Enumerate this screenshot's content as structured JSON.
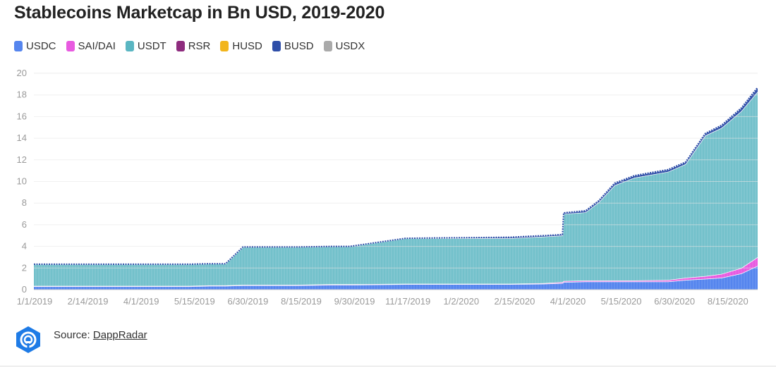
{
  "title": "Stablecoins Marketcap in Bn USD, 2019-2020",
  "source": {
    "prefix": "Source: ",
    "link_text": "DappRadar"
  },
  "logo_icon": "dappradar-logo-icon",
  "chart_data": {
    "type": "area",
    "title": "Stablecoins Marketcap in Bn USD, 2019-2020",
    "stacked": true,
    "ylim": [
      0,
      20
    ],
    "yticks": [
      "0",
      "2",
      "4",
      "6",
      "8",
      "10",
      "12",
      "14",
      "16",
      "18",
      "20"
    ],
    "xticks": [
      "1/1/2019",
      "2/14/2019",
      "4/1/2019",
      "5/15/2019",
      "6/30/2019",
      "8/15/2019",
      "9/30/2019",
      "11/17/2019",
      "1/2/2020",
      "2/15/2020",
      "4/1/2020",
      "5/15/2020",
      "6/30/2020",
      "8/15/2020"
    ],
    "grid": true,
    "legend_position": "top-left",
    "x": [
      "1/1/2019",
      "2/14/2019",
      "4/1/2019",
      "5/15/2019",
      "6/1/2019",
      "6/15/2019",
      "6/30/2019",
      "8/15/2019",
      "9/15/2019",
      "9/30/2019",
      "11/17/2019",
      "1/2/2020",
      "2/15/2020",
      "3/15/2020",
      "3/31/2020",
      "4/1/2020",
      "4/20/2020",
      "5/1/2020",
      "5/15/2020",
      "6/1/2020",
      "6/30/2020",
      "7/15/2020",
      "8/1/2020",
      "8/15/2020",
      "9/1/2020",
      "9/15/2020"
    ],
    "series": [
      {
        "name": "USDC",
        "color": "#5585ee",
        "values": [
          0.3,
          0.3,
          0.3,
          0.3,
          0.35,
          0.35,
          0.4,
          0.4,
          0.45,
          0.45,
          0.5,
          0.5,
          0.5,
          0.55,
          0.6,
          0.7,
          0.75,
          0.75,
          0.75,
          0.75,
          0.75,
          0.9,
          1.0,
          1.1,
          1.5,
          2.2
        ]
      },
      {
        "name": "SAI/DAI",
        "color": "#e85ae0",
        "values": [
          0.05,
          0.05,
          0.05,
          0.05,
          0.05,
          0.05,
          0.05,
          0.05,
          0.05,
          0.05,
          0.05,
          0.05,
          0.05,
          0.05,
          0.1,
          0.1,
          0.1,
          0.1,
          0.1,
          0.1,
          0.15,
          0.2,
          0.25,
          0.35,
          0.5,
          0.8
        ]
      },
      {
        "name": "USDT",
        "color": "#5ab6c2",
        "values": [
          2.0,
          2.0,
          2.0,
          2.0,
          2.0,
          2.0,
          3.5,
          3.5,
          3.5,
          3.5,
          4.2,
          4.2,
          4.2,
          4.3,
          4.3,
          6.2,
          6.3,
          7.2,
          8.8,
          9.5,
          10.0,
          10.5,
          13.0,
          13.5,
          14.5,
          15.3
        ]
      },
      {
        "name": "RSR",
        "color": "#8e2c7e",
        "values": [
          0,
          0,
          0,
          0,
          0,
          0,
          0,
          0,
          0,
          0,
          0,
          0,
          0,
          0,
          0,
          0,
          0,
          0,
          0,
          0,
          0,
          0,
          0,
          0,
          0,
          0
        ]
      },
      {
        "name": "HUSD",
        "color": "#f2b51c",
        "values": [
          0,
          0,
          0,
          0,
          0,
          0,
          0,
          0,
          0,
          0,
          0,
          0,
          0,
          0,
          0,
          0,
          0,
          0,
          0,
          0,
          0,
          0,
          0,
          0,
          0,
          0
        ]
      },
      {
        "name": "BUSD",
        "color": "#2e4ea8",
        "values": [
          0,
          0,
          0,
          0,
          0,
          0,
          0,
          0,
          0,
          0,
          0,
          0.05,
          0.1,
          0.1,
          0.1,
          0.1,
          0.15,
          0.15,
          0.2,
          0.2,
          0.2,
          0.2,
          0.2,
          0.25,
          0.3,
          0.4
        ]
      },
      {
        "name": "USDX",
        "color": "#aaaaaa",
        "values": [
          0,
          0,
          0,
          0,
          0,
          0,
          0,
          0,
          0,
          0,
          0,
          0,
          0,
          0,
          0,
          0,
          0,
          0,
          0,
          0,
          0,
          0,
          0,
          0,
          0,
          0
        ]
      }
    ]
  }
}
